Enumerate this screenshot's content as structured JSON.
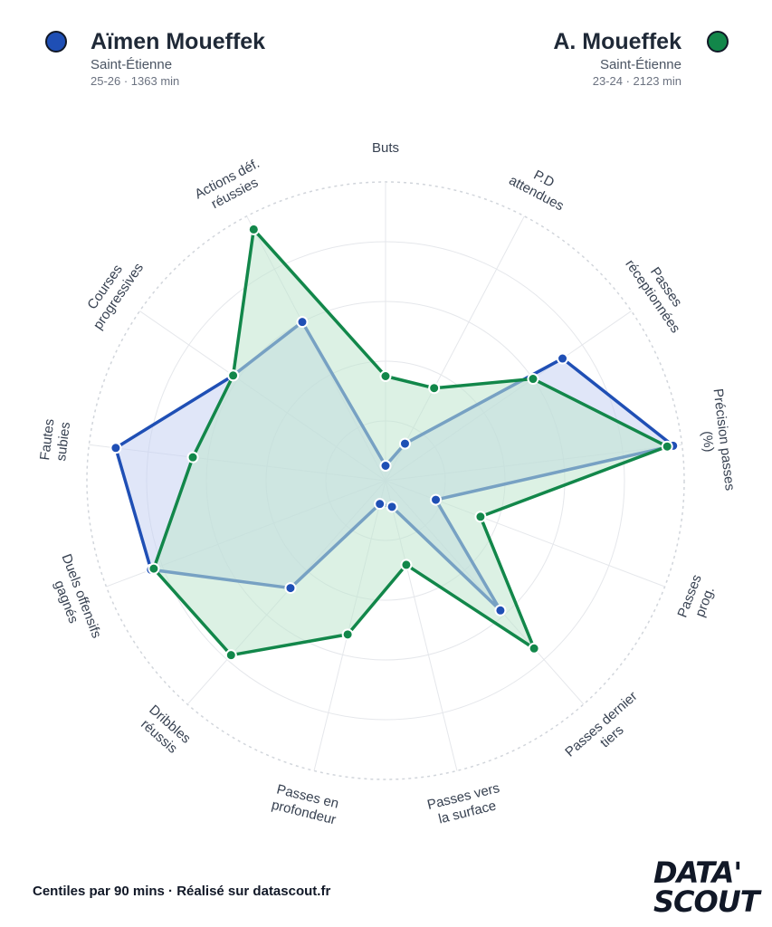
{
  "players": [
    {
      "name": "Aïmen Moueffek",
      "club": "Saint-Étienne",
      "meta": "25-26 · 1363 min",
      "color": "#1f4fb5",
      "fill": "#c7d2f2"
    },
    {
      "name": "A. Moueffek",
      "club": "Saint-Étienne",
      "meta": "23-24 · 2123 min",
      "color": "#12874a",
      "fill": "#bfe6cd"
    }
  ],
  "footer": "Centiles par 90 mins · Réalisé sur datascout.fr",
  "logo": {
    "line1": "DATA'",
    "line2": "SCOUT"
  },
  "chart_data": {
    "type": "radar",
    "range": [
      0,
      100
    ],
    "grid": true,
    "axes": [
      {
        "label": [
          "Buts"
        ]
      },
      {
        "label": [
          "P.D",
          "attendues"
        ]
      },
      {
        "label": [
          "Passes",
          "réceptionnées"
        ]
      },
      {
        "label": [
          "Précision passes",
          "(%)"
        ]
      },
      {
        "label": [
          "Passes",
          "prog."
        ]
      },
      {
        "label": [
          "Passes dernier",
          "tiers"
        ]
      },
      {
        "label": [
          "Passes vers",
          "la surface"
        ]
      },
      {
        "label": [
          "Passes en",
          "profondeur"
        ]
      },
      {
        "label": [
          "Dribbles",
          "réussis"
        ]
      },
      {
        "label": [
          "Duels offensifs",
          "gagnés"
        ]
      },
      {
        "label": [
          "Fautes",
          "subies"
        ]
      },
      {
        "label": [
          "Courses",
          "progressives"
        ]
      },
      {
        "label": [
          "Actions déf.",
          "réussies"
        ]
      }
    ],
    "series": [
      {
        "name": "Aïmen Moueffek",
        "values": [
          5,
          14,
          72,
          97,
          18,
          58,
          9,
          8,
          48,
          84,
          91,
          62,
          60
        ]
      },
      {
        "name": "A. Moueffek",
        "values": [
          35,
          35,
          60,
          95,
          34,
          75,
          29,
          53,
          78,
          83,
          65,
          62,
          95
        ]
      }
    ]
  }
}
